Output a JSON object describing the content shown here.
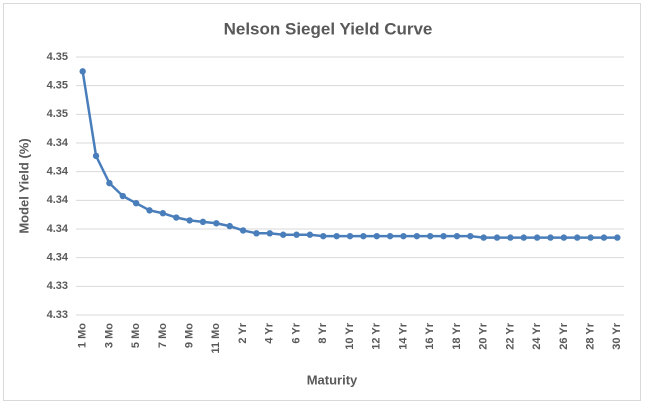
{
  "chart_data": {
    "type": "line",
    "title": "Nelson Siegel Yield Curve",
    "x_label": "Maturity",
    "y_label": "Model Yield (%)",
    "categories": [
      "1 Mo",
      null,
      "3 Mo",
      null,
      "5 Mo",
      null,
      "7 Mo",
      null,
      "9 Mo",
      null,
      "11 Mo",
      null,
      "2 Yr",
      null,
      "4 Yr",
      null,
      "6 Yr",
      null,
      "8 Yr",
      null,
      "10 Yr",
      null,
      "12 Yr",
      null,
      "14 Yr",
      null,
      "16 Yr",
      null,
      "18 Yr",
      null,
      "20 Yr",
      null,
      "22 Yr",
      null,
      "24 Yr",
      null,
      "26 Yr",
      null,
      "28 Yr",
      null,
      "30 Yr"
    ],
    "series": [
      {
        "name": "Model Yield",
        "color": "#4a7ebb",
        "values": [
          4.349,
          4.3431,
          4.3412,
          4.3403,
          4.3398,
          4.3393,
          4.3391,
          4.3388,
          4.3386,
          4.3385,
          4.3384,
          4.3382,
          4.3379,
          4.3377,
          4.3377,
          4.3376,
          4.3376,
          4.3376,
          4.3375,
          4.3375,
          4.3375,
          4.3375,
          4.3375,
          4.3375,
          4.3375,
          4.3375,
          4.3375,
          4.3375,
          4.3375,
          4.3375,
          4.3374,
          4.3374,
          4.3374,
          4.3374,
          4.3374,
          4.3374,
          4.3374,
          4.3374,
          4.3374,
          4.3374,
          4.3374
        ]
      }
    ],
    "ylim": [
      4.332,
      4.35
    ],
    "yticks": [
      {
        "value": 4.332,
        "label": "4.33"
      },
      {
        "value": 4.334,
        "label": "4.33"
      },
      {
        "value": 4.336,
        "label": "4.34"
      },
      {
        "value": 4.338,
        "label": "4.34"
      },
      {
        "value": 4.34,
        "label": "4.34"
      },
      {
        "value": 4.342,
        "label": "4.34"
      },
      {
        "value": 4.344,
        "label": "4.34"
      },
      {
        "value": 4.346,
        "label": "4.35"
      },
      {
        "value": 4.348,
        "label": "4.35"
      },
      {
        "value": 4.35,
        "label": "4.35"
      }
    ],
    "grid": true
  }
}
